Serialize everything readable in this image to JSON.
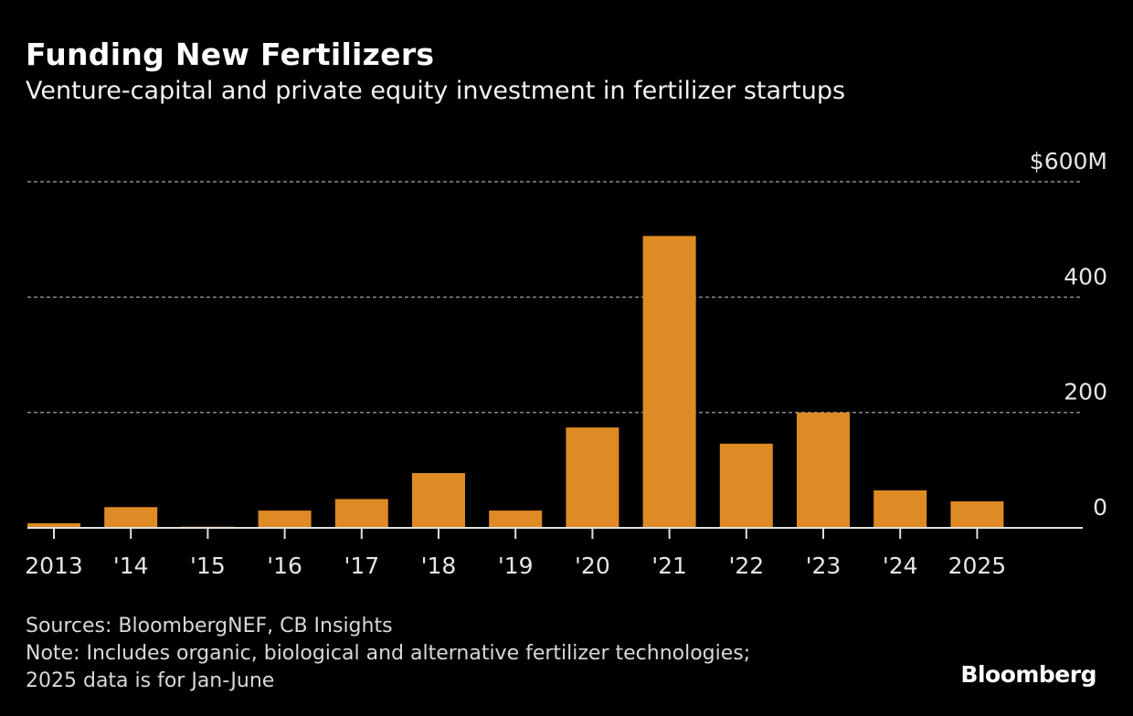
{
  "chart_data": {
    "type": "bar",
    "title": "Funding New Fertilizers",
    "subtitle": "Venture-capital and private equity investment in fertilizer startups",
    "xlabel": "",
    "ylabel": "",
    "categories": [
      "2013",
      "'14",
      "'15",
      "'16",
      "'17",
      "'18",
      "'19",
      "'20",
      "'21",
      "'22",
      "'23",
      "'24",
      "2025"
    ],
    "series": [
      {
        "name": "Investment ($M)",
        "values": [
          8,
          36,
          2,
          30,
          50,
          95,
          30,
          174,
          506,
          146,
          200,
          65,
          46
        ],
        "color": "#de8a25"
      }
    ],
    "ylim": [
      0,
      600
    ],
    "yticks": [
      0,
      200,
      400,
      600
    ],
    "ytick_labels": [
      "0",
      "200",
      "400",
      "$600M"
    ],
    "grid": true,
    "y_axis_side": "right",
    "legend": "none"
  },
  "footer": {
    "sources": "Sources: BloombergNEF, CB Insights",
    "note_line1": "Note: Includes organic, biological and alternative fertilizer technologies;",
    "note_line2": "2025 data is for Jan-June"
  },
  "brand": "Bloomberg",
  "colors": {
    "bar": "#de8a25",
    "background": "#000000",
    "grid": "#8a8a8a",
    "axis": "#e0e0e0"
  }
}
